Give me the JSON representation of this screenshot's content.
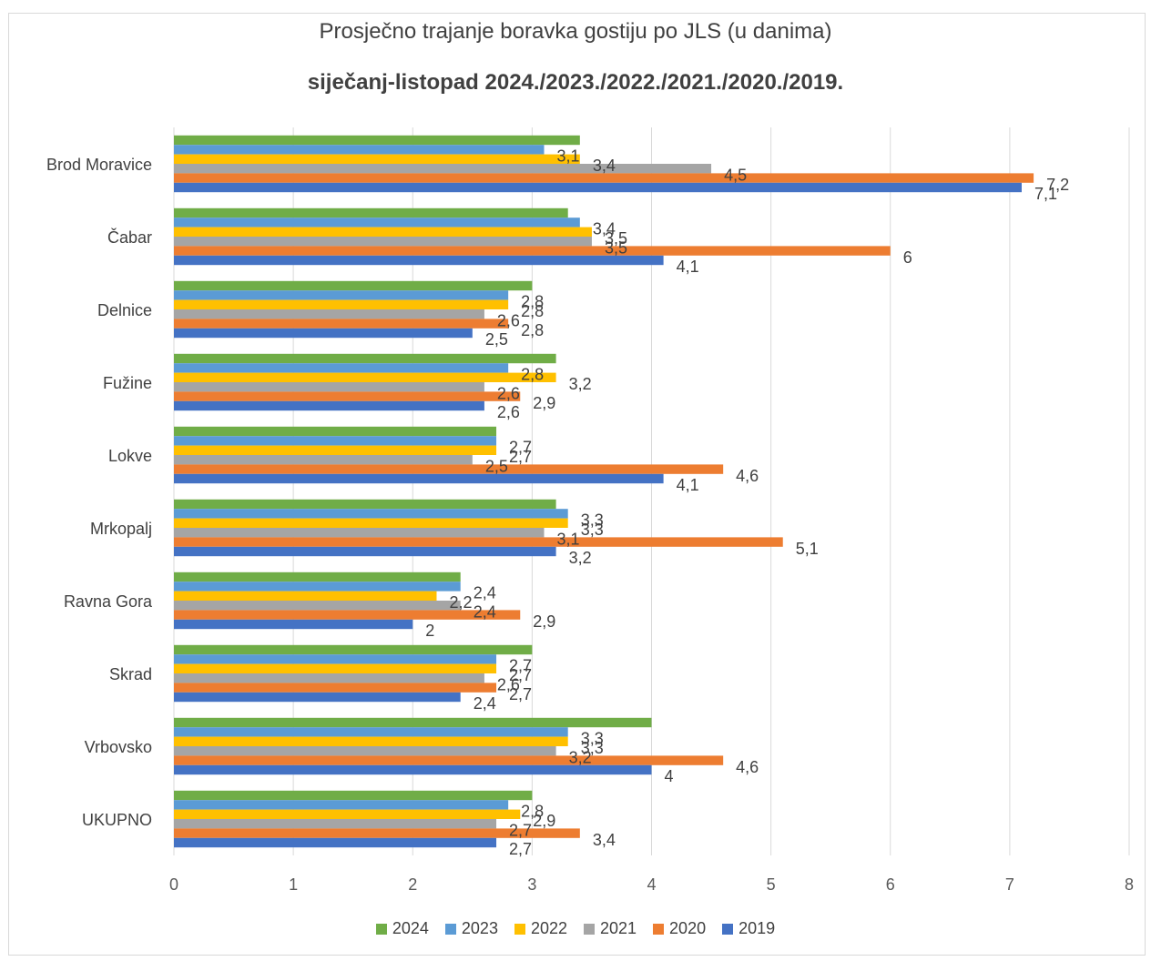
{
  "chart_data": {
    "type": "bar",
    "orientation": "horizontal",
    "title": "Prosječno trajanje boravka gostiju po JLS (u danima)",
    "subtitle": "siječanj-listopad 2024./2023./2022./2021./2020./2019.",
    "categories": [
      "Brod Moravice",
      "Čabar",
      "Delnice",
      "Fužine",
      "Lokve",
      "Mrkopalj",
      "Ravna Gora",
      "Skrad",
      "Vrbovsko",
      "UKUPNO"
    ],
    "series": [
      {
        "name": "2024",
        "color": "#70ad47",
        "values": [
          3.4,
          3.3,
          3.0,
          3.2,
          2.7,
          3.2,
          2.4,
          3.0,
          4.0,
          3.0
        ]
      },
      {
        "name": "2023",
        "color": "#5b9bd5",
        "values": [
          3.1,
          3.4,
          2.8,
          2.8,
          2.7,
          3.3,
          2.4,
          2.7,
          3.3,
          2.8
        ]
      },
      {
        "name": "2022",
        "color": "#ffc000",
        "values": [
          3.4,
          3.5,
          2.8,
          3.2,
          2.7,
          3.3,
          2.2,
          2.7,
          3.3,
          2.9
        ]
      },
      {
        "name": "2021",
        "color": "#a5a5a5",
        "values": [
          4.5,
          3.5,
          2.6,
          2.6,
          2.5,
          3.1,
          2.4,
          2.6,
          3.2,
          2.7
        ]
      },
      {
        "name": "2020",
        "color": "#ed7d31",
        "values": [
          7.2,
          6.0,
          2.8,
          2.9,
          4.6,
          5.1,
          2.9,
          2.7,
          4.6,
          3.4
        ]
      },
      {
        "name": "2019",
        "color": "#4472c4",
        "values": [
          7.1,
          4.1,
          2.5,
          2.6,
          4.1,
          3.2,
          2.0,
          2.4,
          4.0,
          2.7
        ]
      }
    ],
    "data_labels": [
      [
        null,
        null,
        null,
        null,
        null,
        null,
        null,
        null,
        null,
        null
      ],
      [
        "3,1",
        "3,4",
        "2,8",
        "2,8",
        "2,7",
        "3,3",
        "2,4",
        "2,7",
        "3,3",
        "2,8"
      ],
      [
        "3,4",
        "3,5",
        "2,8",
        "3,2",
        "2,7",
        "3,3",
        "2,2",
        "2,7",
        "3,3",
        "2,9"
      ],
      [
        "4,5",
        "3,5",
        "2,6",
        "2,6",
        "2,5",
        "3,1",
        "2,4",
        "2,6",
        "3,2",
        "2,7"
      ],
      [
        "7,2",
        "6",
        "2,8",
        "2,9",
        "4,6",
        "5,1",
        "2,9",
        "2,7",
        "4,6",
        "3,4"
      ],
      [
        "7,1",
        "4,1",
        "2,5",
        "2,6",
        "4,1",
        "3,2",
        "2",
        "2,4",
        "4",
        "2,7"
      ]
    ],
    "xlim": [
      0,
      8
    ],
    "x_ticks": [
      "0",
      "1",
      "2",
      "3",
      "4",
      "5",
      "6",
      "7",
      "8"
    ],
    "grid": "vertical",
    "legend_position": "bottom"
  }
}
